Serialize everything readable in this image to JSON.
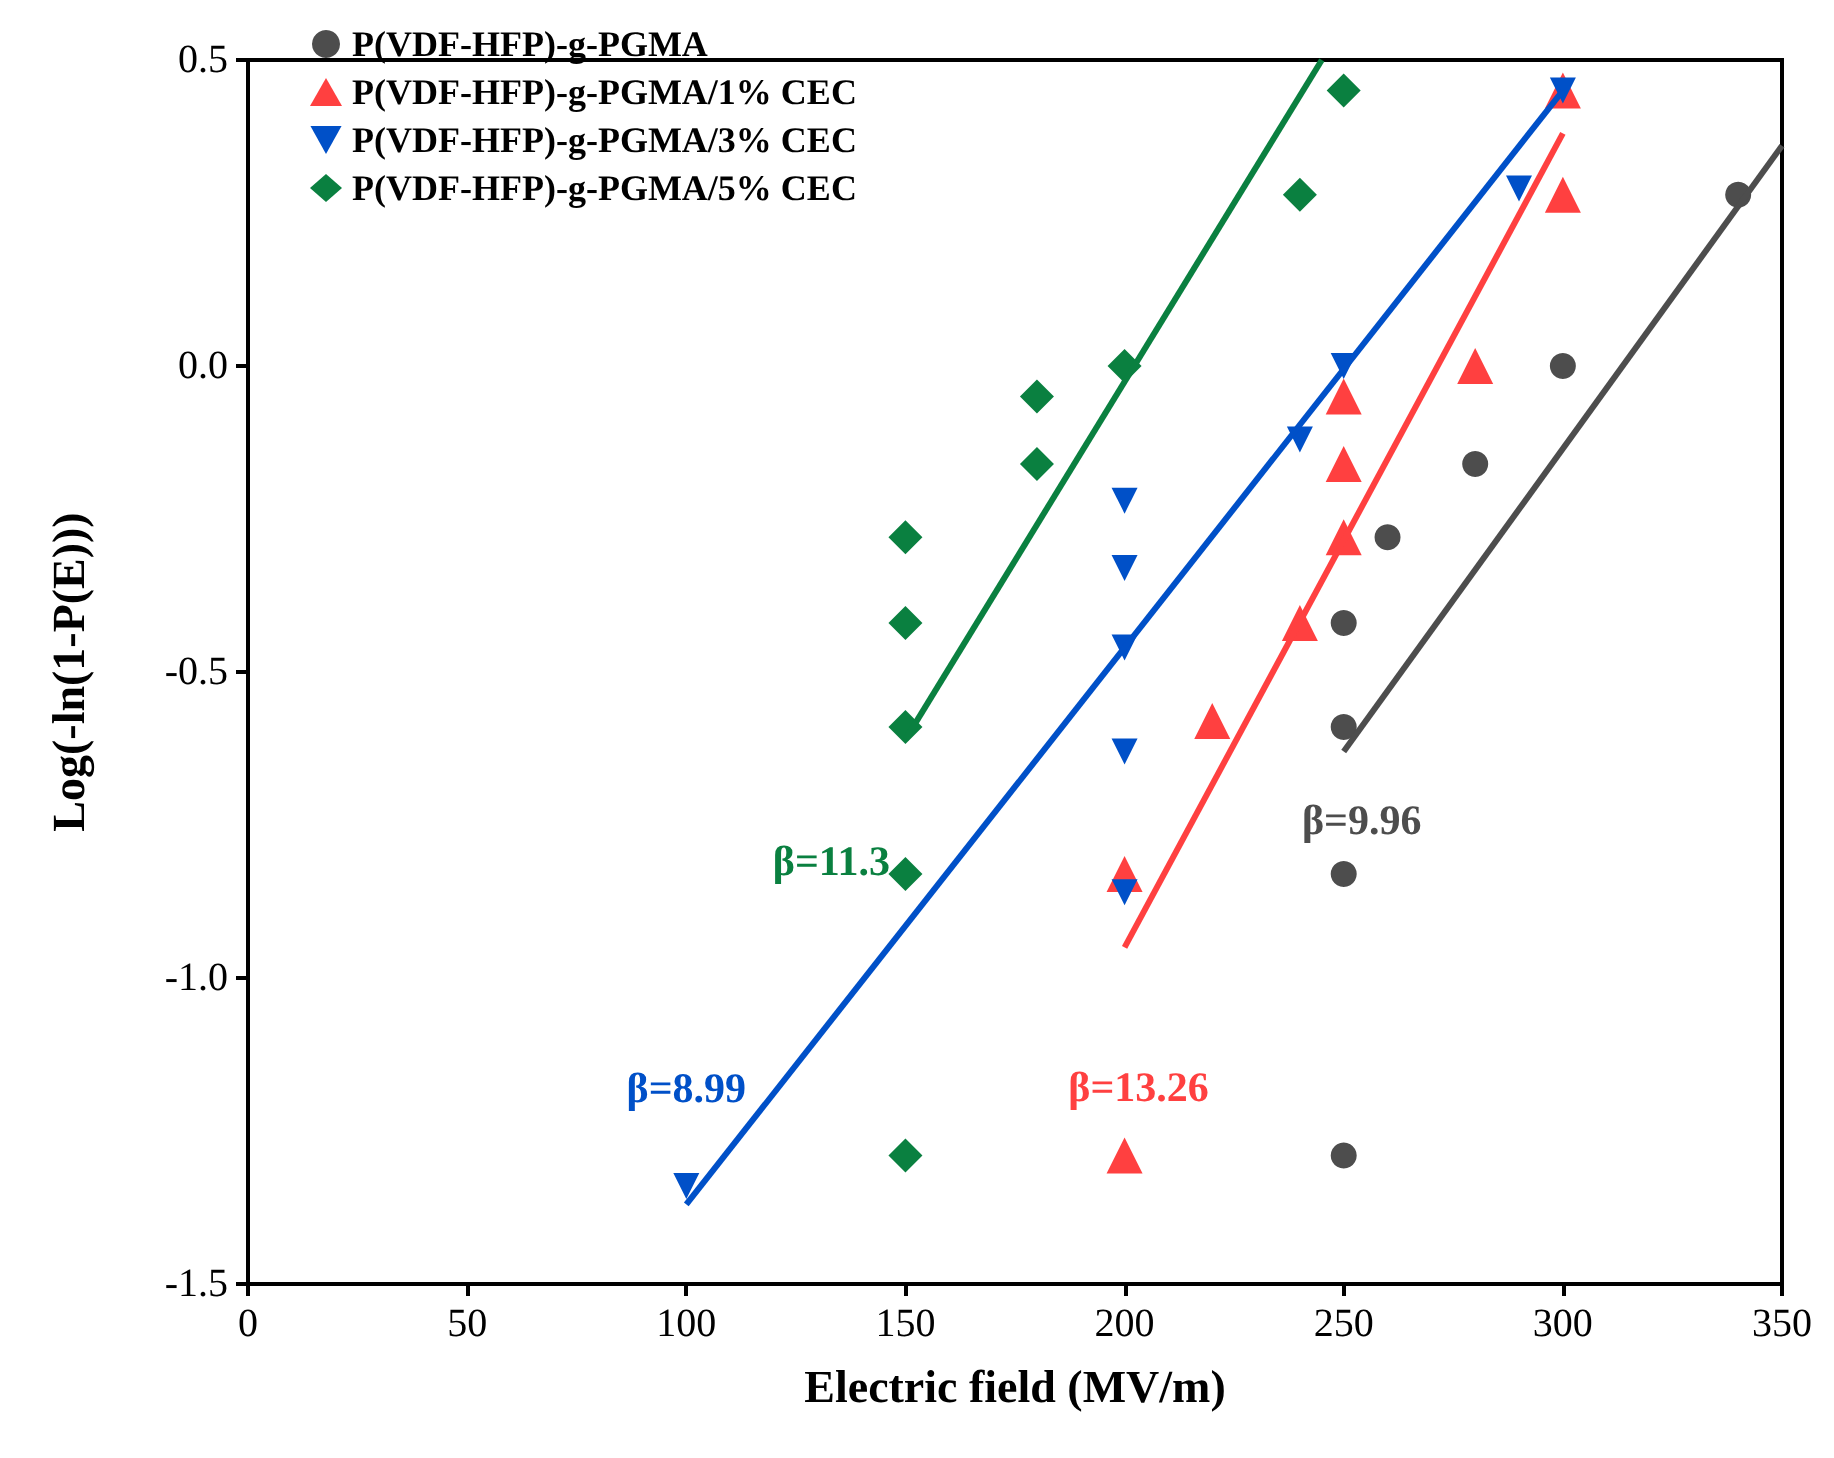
{
  "chart_data": {
    "type": "scatter",
    "xlabel": "Electric field (MV/m)",
    "ylabel": "Log(-ln(1-P(E)))",
    "xlim": [
      0,
      350
    ],
    "xticks": [
      0,
      50,
      100,
      150,
      200,
      250,
      300,
      350
    ],
    "ylim": [
      -1.5,
      0.5
    ],
    "yticks": [
      {
        "value": -1.5,
        "label": "-1.5"
      },
      {
        "value": -1,
        "label": "-1.0"
      },
      {
        "value": -0.5,
        "label": "-0.5"
      },
      {
        "value": 0,
        "label": "0.0"
      },
      {
        "value": 0.5,
        "label": "0.5"
      }
    ],
    "grid": false,
    "legend": "top left",
    "series": [
      {
        "name": "P(VDF-HFP)-g-PGMA",
        "color": "#4d4d4d",
        "marker": "circle",
        "x": [
          250,
          250,
          250,
          250,
          260,
          280,
          300,
          340
        ],
        "values": [
          -1.29,
          -0.83,
          -0.59,
          -0.42,
          -0.28,
          -0.16,
          0.0,
          0.28
        ]
      },
      {
        "name": "P(VDF-HFP)-g-PGMA/1% CEC",
        "color": "#ff4040",
        "marker": "triangle",
        "x": [
          200,
          200,
          220,
          240,
          250,
          250,
          250,
          280,
          300,
          300
        ],
        "values": [
          -1.29,
          -0.83,
          -0.58,
          -0.42,
          -0.28,
          -0.16,
          -0.05,
          0.0,
          0.28,
          0.45
        ]
      },
      {
        "name": "P(VDF-HFP)-g-PGMA/3% CEC",
        "color": "#0050c8",
        "marker": "triangle-down",
        "x": [
          100,
          200,
          200,
          200,
          200,
          200,
          240,
          250,
          290,
          300
        ],
        "values": [
          -1.34,
          -0.86,
          -0.63,
          -0.46,
          -0.33,
          -0.22,
          -0.12,
          0.0,
          0.29,
          0.45
        ]
      },
      {
        "name": "P(VDF-HFP)-g-PGMA/5% CEC",
        "color": "#0a8040",
        "marker": "diamond",
        "x": [
          150,
          150,
          150,
          150,
          150,
          180,
          180,
          200,
          240,
          250
        ],
        "values": [
          -1.29,
          -0.83,
          -0.59,
          -0.42,
          -0.28,
          -0.16,
          -0.05,
          0.0,
          0.28,
          0.45
        ]
      },
      {
        "type": "line",
        "color": "#4d4d4d",
        "x": [
          250,
          350
        ],
        "values": [
          -0.63,
          0.36
        ]
      },
      {
        "type": "line",
        "color": "#ff4040",
        "x": [
          200,
          300
        ],
        "values": [
          -0.95,
          0.38
        ]
      },
      {
        "type": "line",
        "color": "#0050c8",
        "x": [
          100,
          300
        ],
        "values": [
          -1.37,
          0.45
        ]
      },
      {
        "type": "line",
        "color": "#0a8040",
        "x": [
          150,
          245
        ],
        "values": [
          -0.61,
          0.5
        ]
      }
    ],
    "annotations": [
      "β=9.96",
      "β=13.26",
      "β=8.99",
      "β=11.3"
    ]
  }
}
